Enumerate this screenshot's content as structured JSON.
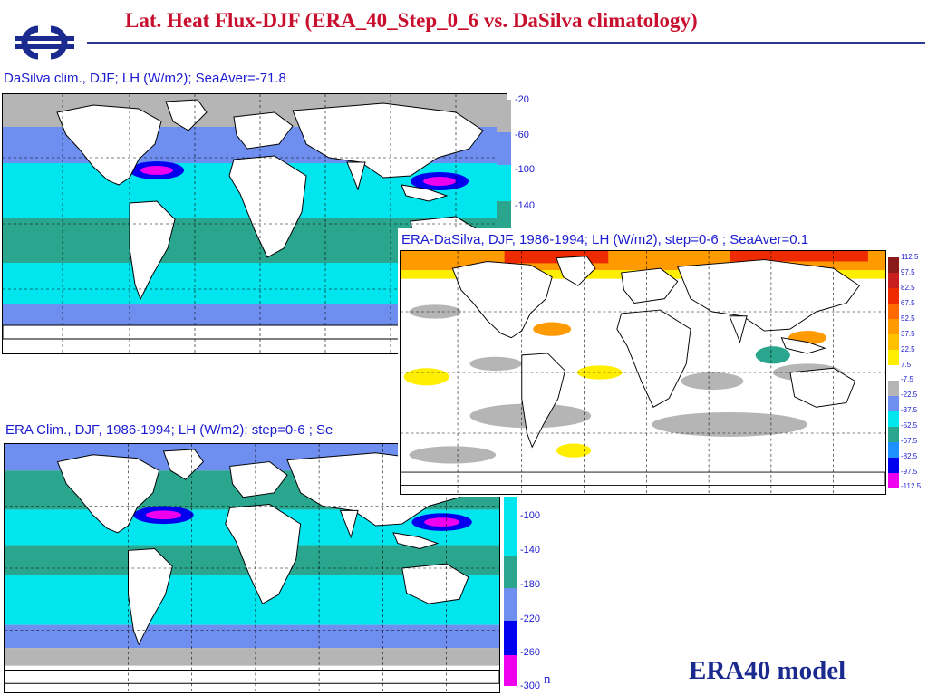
{
  "slide": {
    "title": "Lat. Heat Flux-DJF (ERA_40_Step_0_6 vs. DaSilva climatology)",
    "caption": "ERA40 model",
    "stray_letter": "n"
  },
  "logo": {
    "icon": "ecmwf-logo-icon",
    "color": "#1a2a8f"
  },
  "panels": [
    {
      "id": "dasilva",
      "title": "DaSilva clim., DJF;   LH (W/m2); SeaAver=-71.8",
      "colorbar": {
        "labels": [
          "-20",
          "-60",
          "-100",
          "-140"
        ],
        "colors": [
          "#b5b5b5",
          "#6f8ff0",
          "#00e5ee",
          "#2aa58e"
        ]
      }
    },
    {
      "id": "era-clim",
      "title": "ERA Clim., DJF, 1986-1994; LH (W/m2); step=0-6  ; Se",
      "colorbar": {
        "labels": [
          "-100",
          "-140",
          "-180",
          "-220",
          "-260",
          "-300"
        ],
        "colors": [
          "#00e5ee",
          "#2aa58e",
          "#6f8ff0",
          "#0000ee",
          "#ee00ee"
        ]
      }
    },
    {
      "id": "diff",
      "title": "ERA-DaSilva, DJF, 1986-1994; LH (W/m2), step=0-6  ; SeaAver=0.1",
      "colorbar": {
        "labels": [
          "112.5",
          "97.5",
          "82.5",
          "67.5",
          "52.5",
          "37.5",
          "22.5",
          "7.5",
          "-7.5",
          "-22.5",
          "-37.5",
          "-52.5",
          "-67.5",
          "-82.5",
          "-97.5",
          "-112.5"
        ],
        "colors": [
          "#8b1a1a",
          "#c81e1e",
          "#ee2a00",
          "#ff6a00",
          "#ff9a00",
          "#ffc000",
          "#ffee00",
          "#ffffff",
          "#b5b5b5",
          "#6f8ff0",
          "#00e5ee",
          "#2aa58e",
          "#1e90ff",
          "#0000ee",
          "#ee00ee"
        ]
      }
    }
  ]
}
